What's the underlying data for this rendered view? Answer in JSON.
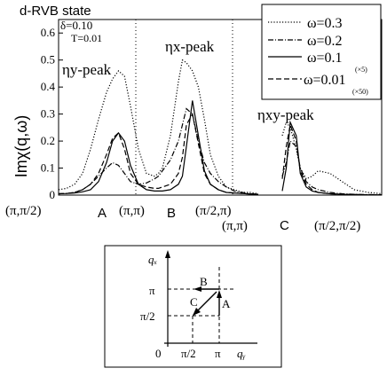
{
  "chart_data": {
    "type": "line",
    "title": "d-RVB state",
    "params": {
      "delta": "δ=0.10",
      "temperature": "T=0.01"
    },
    "ylabel": "Imχ(q,ω)",
    "ylim": [
      0,
      0.65
    ],
    "yticks": [
      "0",
      "0.1",
      "0.2",
      "0.3",
      "0.4",
      "0.5",
      "0.6"
    ],
    "xticks": {
      "left": [
        "(π,π/2)",
        "(π,π)",
        "(π/2,π)"
      ],
      "right": [
        "(π,π)",
        "(π/2,π/2)"
      ]
    },
    "segment_labels": [
      "A",
      "B",
      "C"
    ],
    "peak_labels": [
      "ηy-peak",
      "ηx-peak",
      "ηxy-peak"
    ],
    "x": [
      0,
      0.04,
      0.08,
      0.12,
      0.16,
      0.2,
      0.24,
      0.27,
      0.3,
      0.33,
      0.36,
      0.4,
      0.44,
      0.48,
      0.5,
      0.52,
      0.56,
      0.6,
      0.62,
      0.64,
      0.67,
      0.7,
      0.73,
      0.76,
      0.8,
      0.84,
      0.88,
      0.92,
      0.96,
      1.0,
      1.12,
      1.14,
      1.16,
      1.19,
      1.21,
      1.24,
      1.27,
      1.3,
      1.36,
      1.42,
      1.48,
      1.55,
      1.62
    ],
    "series": [
      {
        "name": "ω=0.3",
        "values": [
          0.02,
          0.025,
          0.04,
          0.08,
          0.17,
          0.28,
          0.38,
          0.43,
          0.46,
          0.44,
          0.33,
          0.17,
          0.08,
          0.07,
          0.08,
          0.1,
          0.22,
          0.42,
          0.5,
          0.49,
          0.46,
          0.4,
          0.28,
          0.15,
          0.07,
          0.03,
          0.02,
          0.01,
          0.01,
          0.005,
          0.22,
          0.27,
          0.25,
          0.17,
          0.1,
          0.06,
          0.07,
          0.09,
          0.08,
          0.05,
          0.02,
          0.01,
          0.005
        ]
      },
      {
        "name": "ω=0.2",
        "values": [
          0.005,
          0.006,
          0.01,
          0.02,
          0.04,
          0.07,
          0.1,
          0.12,
          0.11,
          0.08,
          0.05,
          0.04,
          0.045,
          0.06,
          0.07,
          0.09,
          0.13,
          0.2,
          0.26,
          0.32,
          0.3,
          0.2,
          0.12,
          0.08,
          0.05,
          0.03,
          0.015,
          0.01,
          0.005,
          0.003,
          0.07,
          0.12,
          0.2,
          0.18,
          0.1,
          0.05,
          0.03,
          0.02,
          0.01,
          0.005,
          0.003,
          0.002,
          0.001
        ]
      },
      {
        "name": "ω=0.1",
        "note": "(×5)",
        "values": [
          0.005,
          0.006,
          0.008,
          0.012,
          0.02,
          0.05,
          0.12,
          0.2,
          0.23,
          0.2,
          0.11,
          0.04,
          0.02,
          0.015,
          0.015,
          0.015,
          0.02,
          0.04,
          0.07,
          0.18,
          0.35,
          0.22,
          0.09,
          0.04,
          0.02,
          0.01,
          0.008,
          0.006,
          0.004,
          0.003,
          0.015,
          0.1,
          0.27,
          0.22,
          0.08,
          0.03,
          0.015,
          0.01,
          0.005,
          0.003,
          0.002,
          0.001,
          0.001
        ]
      },
      {
        "name": "ω=0.01",
        "note": "(×50)",
        "values": [
          0.005,
          0.006,
          0.01,
          0.02,
          0.04,
          0.08,
          0.15,
          0.21,
          0.23,
          0.17,
          0.08,
          0.04,
          0.03,
          0.025,
          0.025,
          0.03,
          0.04,
          0.08,
          0.14,
          0.26,
          0.3,
          0.19,
          0.08,
          0.04,
          0.02,
          0.01,
          0.008,
          0.006,
          0.004,
          0.003,
          0.06,
          0.18,
          0.26,
          0.2,
          0.09,
          0.04,
          0.02,
          0.01,
          0.005,
          0.003,
          0.002,
          0.001,
          0.001
        ]
      }
    ],
    "inset": {
      "xlabel": "qᵧ",
      "ylabel": "qₓ",
      "ticks_x": [
        "0",
        "π/2",
        "π"
      ],
      "ticks_y": [
        "π",
        "π/2"
      ],
      "path_labels": [
        "A",
        "B",
        "C"
      ]
    }
  }
}
